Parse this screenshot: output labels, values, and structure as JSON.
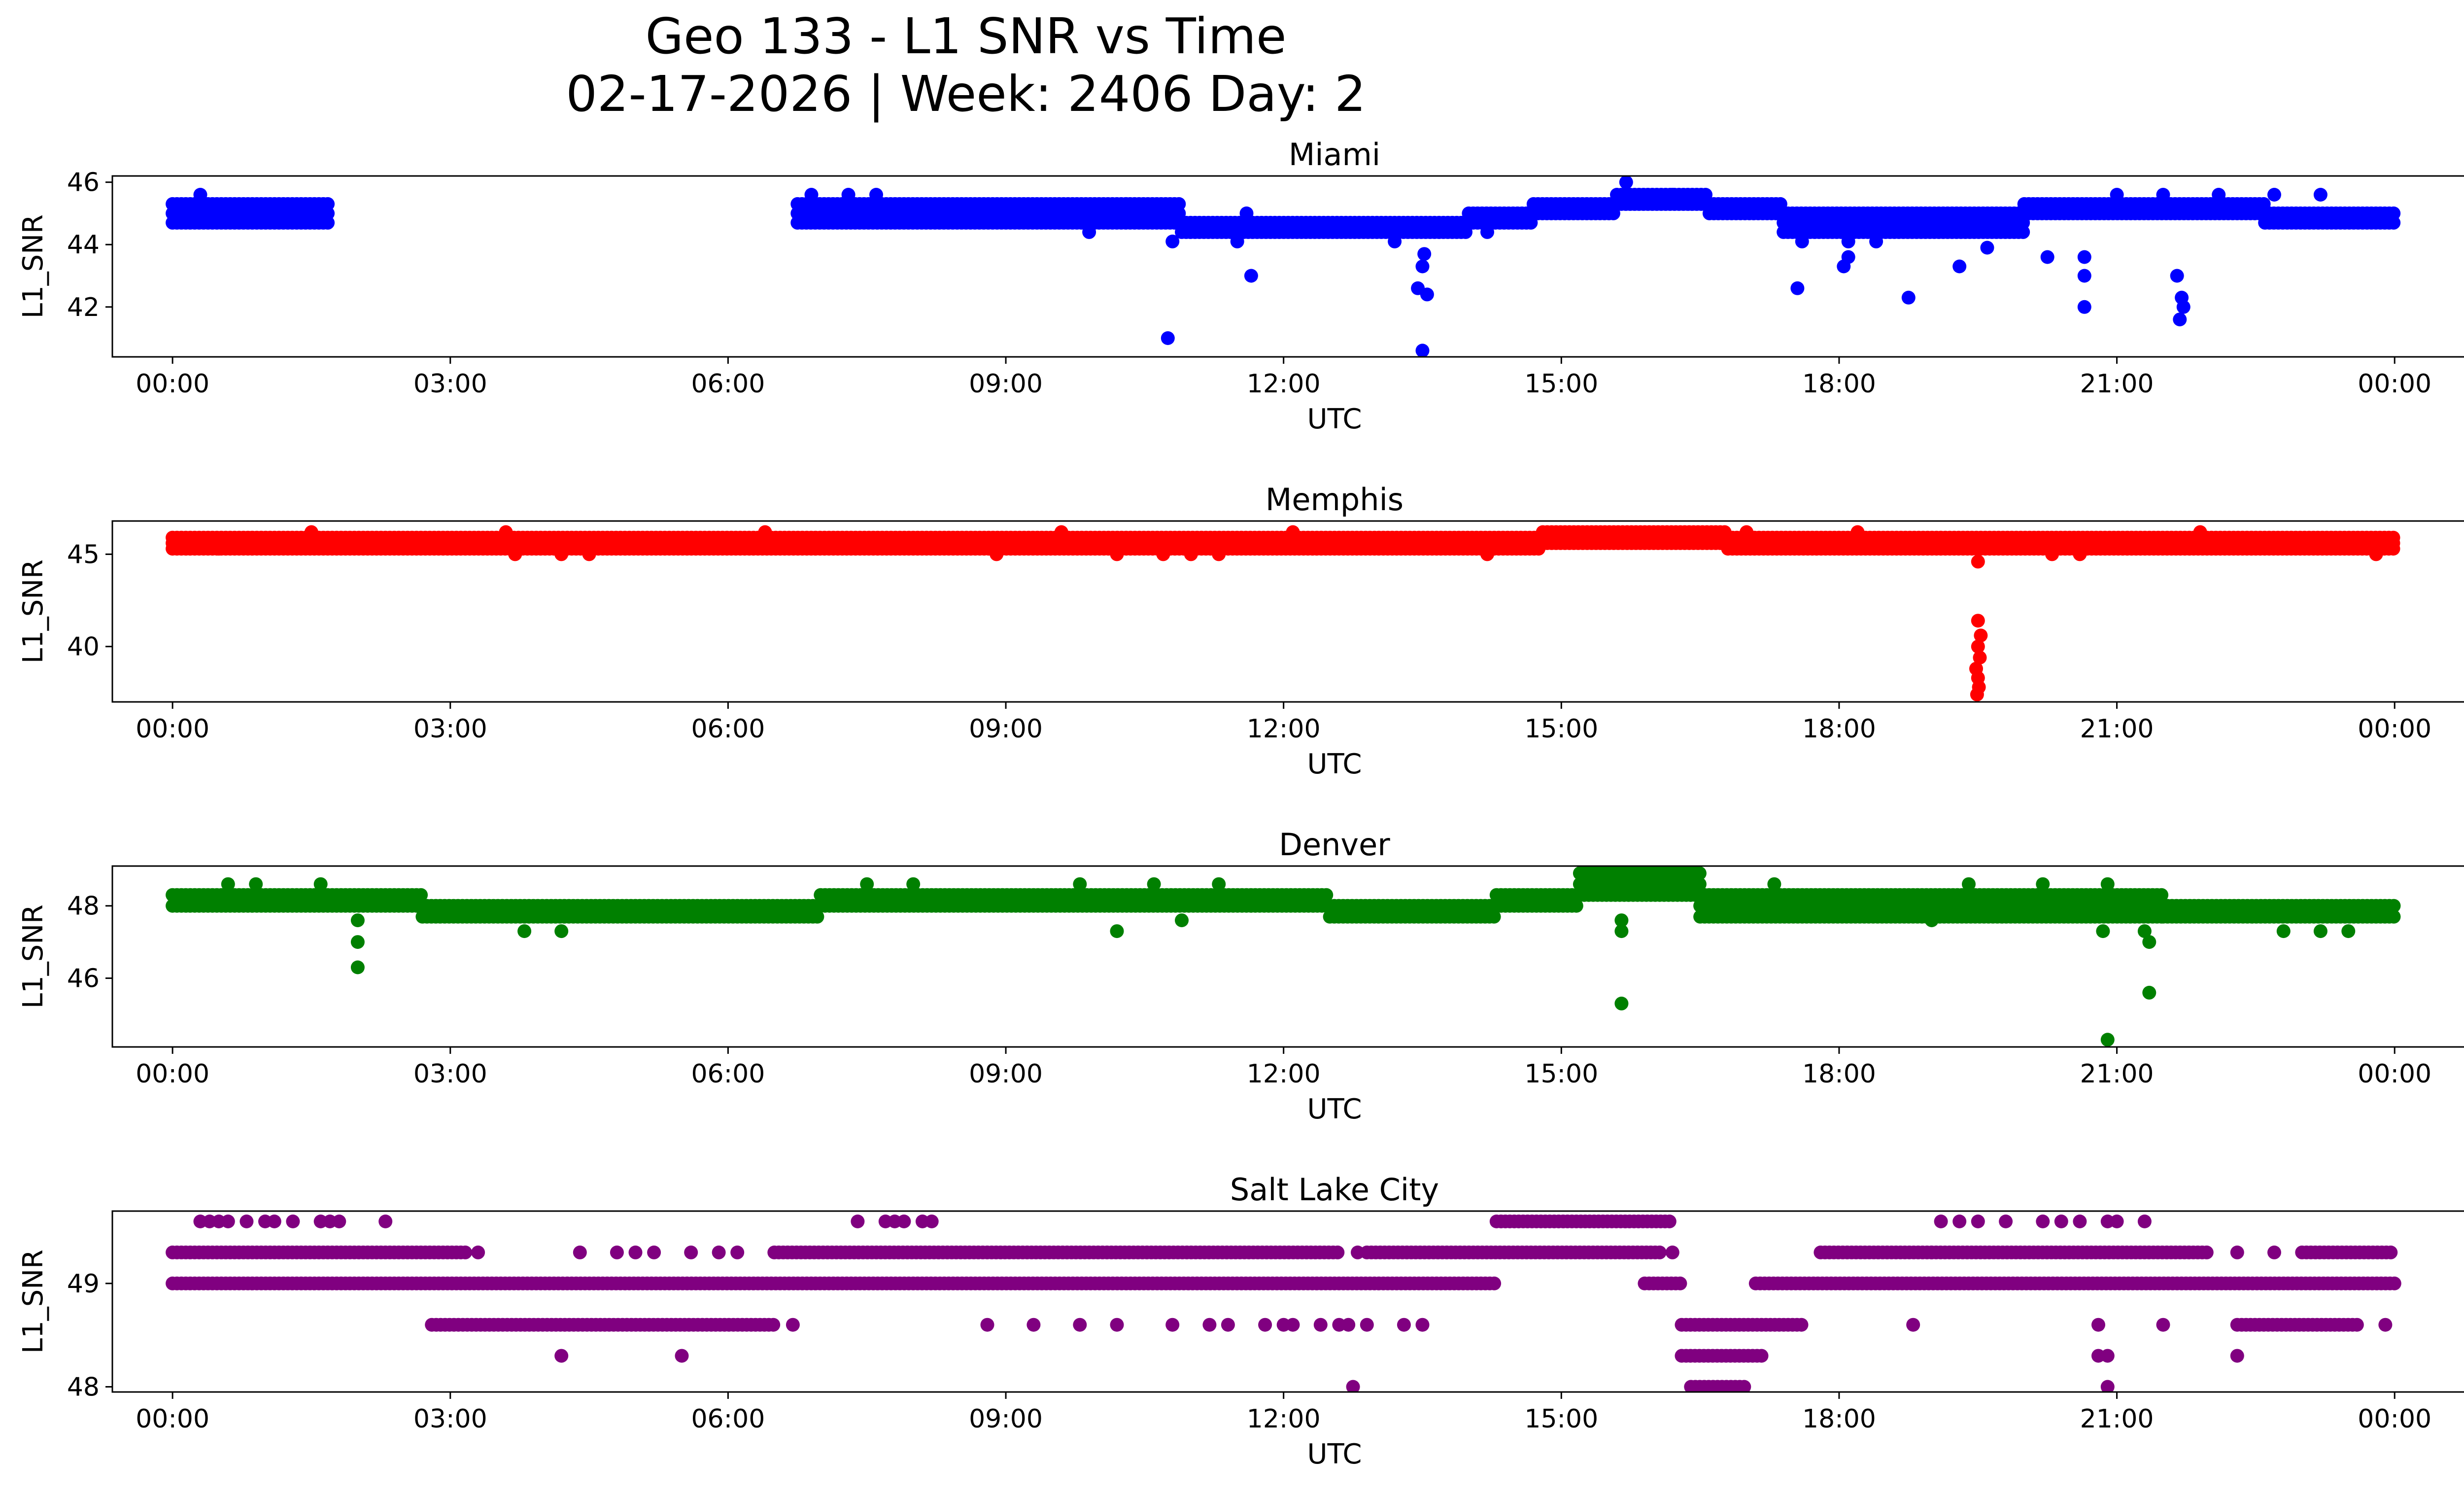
{
  "figure_title": {
    "line1": "Geo 133 - L1 SNR vs Time",
    "line2": "02-17-2026 | Week: 2406 Day: 2"
  },
  "chart_data": [
    {
      "type": "scatter",
      "title": "Miami",
      "color": "#0000ff",
      "xlabel": "UTC",
      "ylabel": "L1_SNR",
      "xlim": [
        -0.65,
        25.75
      ],
      "ylim": [
        40.4,
        46.2
      ],
      "xticks": [
        0,
        3,
        6,
        9,
        12,
        15,
        18,
        21,
        24
      ],
      "xtick_labels": [
        "00:00",
        "03:00",
        "06:00",
        "09:00",
        "12:00",
        "15:00",
        "18:00",
        "21:00",
        "00:00"
      ],
      "yticks": [
        42,
        44,
        46
      ],
      "ytick_labels": [
        "42",
        "44",
        "46"
      ],
      "bands": [
        {
          "x": [
            0.0,
            1.7
          ],
          "levels": [
            45.3,
            45.0,
            44.7
          ],
          "dense": true
        },
        {
          "x": [
            6.75,
            10.9
          ],
          "levels": [
            45.3,
            45.0,
            44.7
          ],
          "dense": true
        },
        {
          "x": [
            10.9,
            14.0
          ],
          "levels": [
            44.7,
            44.4
          ],
          "dense": true
        },
        {
          "x": [
            14.0,
            14.7
          ],
          "levels": [
            45.0,
            44.7
          ],
          "dense": true
        },
        {
          "x": [
            14.7,
            15.6
          ],
          "levels": [
            45.3,
            45.0
          ],
          "dense": true
        },
        {
          "x": [
            15.6,
            16.6
          ],
          "levels": [
            45.6,
            45.3
          ],
          "dense": true
        },
        {
          "x": [
            16.6,
            17.4
          ],
          "levels": [
            45.3,
            45.0
          ],
          "dense": true
        },
        {
          "x": [
            17.4,
            20.0
          ],
          "levels": [
            45.0,
            44.7,
            44.4
          ],
          "dense": true
        },
        {
          "x": [
            20.0,
            22.6
          ],
          "levels": [
            45.3,
            45.0
          ],
          "dense": true
        },
        {
          "x": [
            22.6,
            24.0
          ],
          "levels": [
            45.0,
            44.7
          ],
          "dense": true
        }
      ],
      "points": [
        [
          0.3,
          45.6
        ],
        [
          6.9,
          45.6
        ],
        [
          7.3,
          45.6
        ],
        [
          7.6,
          45.6
        ],
        [
          9.9,
          44.4
        ],
        [
          10.3,
          45.3
        ],
        [
          10.8,
          44.1
        ],
        [
          11.5,
          44.1
        ],
        [
          11.6,
          45.0
        ],
        [
          13.2,
          44.1
        ],
        [
          14.2,
          44.4
        ],
        [
          15.7,
          46.0
        ],
        [
          16.2,
          45.6
        ],
        [
          17.6,
          44.1
        ],
        [
          18.1,
          44.1
        ],
        [
          18.4,
          44.1
        ],
        [
          19.6,
          43.9
        ],
        [
          21.0,
          45.6
        ],
        [
          21.5,
          45.6
        ],
        [
          22.1,
          45.6
        ],
        [
          22.7,
          45.6
        ],
        [
          23.2,
          45.6
        ],
        [
          10.75,
          41.0
        ],
        [
          11.65,
          43.0
        ],
        [
          13.45,
          42.6
        ],
        [
          13.5,
          43.3
        ],
        [
          13.55,
          42.4
        ],
        [
          13.52,
          43.7
        ],
        [
          13.5,
          40.6
        ],
        [
          17.55,
          42.6
        ],
        [
          18.05,
          43.3
        ],
        [
          18.1,
          43.6
        ],
        [
          18.75,
          42.3
        ],
        [
          19.3,
          43.3
        ],
        [
          20.25,
          43.6
        ],
        [
          20.65,
          43.6
        ],
        [
          20.65,
          43.0
        ],
        [
          20.65,
          42.0
        ],
        [
          21.65,
          43.0
        ],
        [
          21.7,
          42.3
        ],
        [
          21.72,
          42.0
        ],
        [
          21.68,
          41.6
        ]
      ]
    },
    {
      "type": "scatter",
      "title": "Memphis",
      "color": "#ff0000",
      "xlabel": "UTC",
      "ylabel": "L1_SNR",
      "xlim": [
        -0.65,
        25.75
      ],
      "ylim": [
        37,
        46.8
      ],
      "xticks": [
        0,
        3,
        6,
        9,
        12,
        15,
        18,
        21,
        24
      ],
      "xtick_labels": [
        "00:00",
        "03:00",
        "06:00",
        "09:00",
        "12:00",
        "15:00",
        "18:00",
        "21:00",
        "00:00"
      ],
      "yticks": [
        40,
        45
      ],
      "ytick_labels": [
        "40",
        "45"
      ],
      "bands": [
        {
          "x": [
            0.0,
            14.8
          ],
          "levels": [
            45.9,
            45.6,
            45.3
          ],
          "dense": true
        },
        {
          "x": [
            14.8,
            16.8
          ],
          "levels": [
            46.2,
            45.9,
            45.6
          ],
          "dense": true
        },
        {
          "x": [
            16.8,
            24.0
          ],
          "levels": [
            45.9,
            45.6,
            45.3
          ],
          "dense": true
        }
      ],
      "points": [
        [
          0.5,
          45.3
        ],
        [
          3.7,
          45.0
        ],
        [
          4.2,
          45.0
        ],
        [
          4.5,
          45.0
        ],
        [
          8.9,
          45.0
        ],
        [
          10.2,
          45.0
        ],
        [
          10.7,
          45.0
        ],
        [
          11.0,
          45.0
        ],
        [
          11.3,
          45.0
        ],
        [
          14.2,
          45.0
        ],
        [
          19.5,
          44.6
        ],
        [
          20.3,
          45.0
        ],
        [
          20.6,
          45.0
        ],
        [
          23.8,
          45.0
        ],
        [
          1.5,
          46.2
        ],
        [
          3.6,
          46.2
        ],
        [
          6.4,
          46.2
        ],
        [
          9.6,
          46.2
        ],
        [
          12.1,
          46.2
        ],
        [
          17.0,
          46.2
        ],
        [
          18.2,
          46.2
        ],
        [
          21.9,
          46.2
        ],
        [
          19.5,
          41.4
        ],
        [
          19.53,
          40.6
        ],
        [
          19.5,
          40.0
        ],
        [
          19.52,
          39.4
        ],
        [
          19.48,
          38.8
        ],
        [
          19.5,
          38.3
        ],
        [
          19.51,
          37.8
        ],
        [
          19.49,
          37.4
        ]
      ]
    },
    {
      "type": "scatter",
      "title": "Denver",
      "color": "#008000",
      "xlabel": "UTC",
      "ylabel": "L1_SNR",
      "xlim": [
        -0.65,
        25.75
      ],
      "ylim": [
        44.1,
        49.1
      ],
      "xticks": [
        0,
        3,
        6,
        9,
        12,
        15,
        18,
        21,
        24
      ],
      "xtick_labels": [
        "00:00",
        "03:00",
        "06:00",
        "09:00",
        "12:00",
        "15:00",
        "18:00",
        "21:00",
        "00:00"
      ],
      "yticks": [
        46,
        48
      ],
      "ytick_labels": [
        "46",
        "48"
      ],
      "bands": [
        {
          "x": [
            0.0,
            2.7
          ],
          "levels": [
            48.3,
            48.0
          ],
          "dense": true
        },
        {
          "x": [
            2.7,
            7.0
          ],
          "levels": [
            48.0,
            47.7
          ],
          "dense": true
        },
        {
          "x": [
            7.0,
            12.5
          ],
          "levels": [
            48.3,
            48.0
          ],
          "dense": true
        },
        {
          "x": [
            12.5,
            14.3
          ],
          "levels": [
            48.0,
            47.7
          ],
          "dense": true
        },
        {
          "x": [
            14.3,
            15.2
          ],
          "levels": [
            48.3,
            48.0
          ],
          "dense": true
        },
        {
          "x": [
            15.2,
            16.5
          ],
          "levels": [
            48.9,
            48.6,
            48.3
          ],
          "dense": true
        },
        {
          "x": [
            16.5,
            21.5
          ],
          "levels": [
            48.3,
            48.0,
            47.7
          ],
          "dense": true
        },
        {
          "x": [
            21.5,
            24.0
          ],
          "levels": [
            48.0,
            47.7
          ],
          "dense": true
        }
      ],
      "points": [
        [
          0.6,
          48.6
        ],
        [
          0.9,
          48.6
        ],
        [
          1.6,
          48.6
        ],
        [
          7.5,
          48.6
        ],
        [
          8.0,
          48.6
        ],
        [
          9.8,
          48.6
        ],
        [
          10.6,
          48.6
        ],
        [
          11.3,
          48.6
        ],
        [
          17.3,
          48.6
        ],
        [
          19.4,
          48.6
        ],
        [
          20.2,
          48.6
        ],
        [
          20.9,
          48.6
        ],
        [
          3.8,
          47.3
        ],
        [
          4.2,
          47.3
        ],
        [
          10.2,
          47.3
        ],
        [
          10.9,
          47.6
        ],
        [
          19.0,
          47.6
        ],
        [
          22.8,
          47.3
        ],
        [
          23.2,
          47.3
        ],
        [
          23.5,
          47.3
        ],
        [
          2.0,
          47.6
        ],
        [
          2.0,
          47.0
        ],
        [
          2.0,
          46.3
        ],
        [
          15.65,
          47.6
        ],
        [
          15.65,
          47.3
        ],
        [
          15.65,
          45.3
        ],
        [
          20.85,
          47.3
        ],
        [
          20.9,
          44.3
        ],
        [
          21.3,
          47.3
        ],
        [
          21.35,
          47.0
        ],
        [
          21.35,
          45.6
        ]
      ]
    },
    {
      "type": "scatter",
      "title": "Salt Lake City",
      "color": "#800080",
      "xlabel": "UTC",
      "ylabel": "L1_SNR",
      "xlim": [
        -0.65,
        25.75
      ],
      "ylim": [
        47.95,
        49.7
      ],
      "xticks": [
        0,
        3,
        6,
        9,
        12,
        15,
        18,
        21,
        24
      ],
      "xtick_labels": [
        "00:00",
        "03:00",
        "06:00",
        "09:00",
        "12:00",
        "15:00",
        "18:00",
        "21:00",
        "00:00"
      ],
      "yticks": [
        48,
        49
      ],
      "ytick_labels": [
        "48",
        "49"
      ],
      "bands": [
        {
          "x": [
            0.0,
            14.3
          ],
          "levels": [
            49.0
          ],
          "dense": true
        },
        {
          "x": [
            15.9,
            16.3
          ],
          "levels": [
            49.0
          ],
          "dense": true
        },
        {
          "x": [
            17.1,
            24.0
          ],
          "levels": [
            49.0
          ],
          "dense": true
        },
        {
          "x": [
            0.0,
            3.2
          ],
          "levels": [
            49.3
          ],
          "dense": true
        },
        {
          "x": [
            6.5,
            12.6
          ],
          "levels": [
            49.3
          ],
          "dense": true
        },
        {
          "x": [
            12.9,
            16.1
          ],
          "levels": [
            49.3
          ],
          "dense": true
        },
        {
          "x": [
            17.8,
            19.0
          ],
          "levels": [
            49.3
          ],
          "dense": true
        },
        {
          "x": [
            19.0,
            22.0
          ],
          "levels": [
            49.3
          ],
          "dense": true
        },
        {
          "x": [
            23.0,
            24.0
          ],
          "levels": [
            49.3
          ],
          "dense": true
        },
        {
          "x": [
            2.8,
            6.5
          ],
          "levels": [
            48.6
          ],
          "dense": true
        },
        {
          "x": [
            16.3,
            17.6
          ],
          "levels": [
            48.6
          ],
          "dense": true
        },
        {
          "x": [
            22.3,
            23.6
          ],
          "levels": [
            48.6
          ],
          "dense": true
        },
        {
          "x": [
            14.3,
            16.2
          ],
          "levels": [
            49.6
          ],
          "dense": true
        },
        {
          "x": [
            16.3,
            17.2
          ],
          "levels": [
            48.3
          ],
          "dense": true
        },
        {
          "x": [
            16.4,
            17.0
          ],
          "levels": [
            48.0
          ],
          "dense": true
        }
      ],
      "points": [
        [
          0.3,
          49.6
        ],
        [
          0.4,
          49.6
        ],
        [
          0.5,
          49.6
        ],
        [
          0.6,
          49.6
        ],
        [
          0.8,
          49.6
        ],
        [
          1.0,
          49.6
        ],
        [
          1.1,
          49.6
        ],
        [
          1.3,
          49.6
        ],
        [
          1.6,
          49.6
        ],
        [
          1.7,
          49.6
        ],
        [
          1.8,
          49.6
        ],
        [
          2.3,
          49.6
        ],
        [
          7.4,
          49.6
        ],
        [
          7.7,
          49.6
        ],
        [
          7.8,
          49.6
        ],
        [
          7.9,
          49.6
        ],
        [
          8.1,
          49.6
        ],
        [
          8.2,
          49.6
        ],
        [
          19.1,
          49.6
        ],
        [
          19.3,
          49.6
        ],
        [
          19.5,
          49.6
        ],
        [
          19.8,
          49.6
        ],
        [
          20.2,
          49.6
        ],
        [
          20.4,
          49.6
        ],
        [
          20.6,
          49.6
        ],
        [
          20.9,
          49.6
        ],
        [
          21.0,
          49.6
        ],
        [
          21.3,
          49.6
        ],
        [
          3.3,
          49.3
        ],
        [
          4.4,
          49.3
        ],
        [
          4.8,
          49.3
        ],
        [
          5.0,
          49.3
        ],
        [
          5.2,
          49.3
        ],
        [
          5.6,
          49.3
        ],
        [
          5.9,
          49.3
        ],
        [
          6.1,
          49.3
        ],
        [
          12.8,
          49.3
        ],
        [
          16.2,
          49.3
        ],
        [
          22.3,
          49.3
        ],
        [
          22.7,
          49.3
        ],
        [
          6.7,
          48.6
        ],
        [
          8.8,
          48.6
        ],
        [
          9.3,
          48.6
        ],
        [
          9.8,
          48.6
        ],
        [
          10.2,
          48.6
        ],
        [
          10.8,
          48.6
        ],
        [
          11.2,
          48.6
        ],
        [
          11.4,
          48.6
        ],
        [
          11.8,
          48.6
        ],
        [
          12.0,
          48.6
        ],
        [
          12.1,
          48.6
        ],
        [
          12.4,
          48.6
        ],
        [
          12.6,
          48.6
        ],
        [
          12.7,
          48.6
        ],
        [
          12.9,
          48.6
        ],
        [
          13.3,
          48.6
        ],
        [
          13.5,
          48.6
        ],
        [
          18.8,
          48.6
        ],
        [
          20.8,
          48.6
        ],
        [
          21.5,
          48.6
        ],
        [
          23.9,
          48.6
        ],
        [
          4.2,
          48.3
        ],
        [
          5.5,
          48.3
        ],
        [
          20.8,
          48.3
        ],
        [
          20.9,
          48.3
        ],
        [
          22.3,
          48.3
        ],
        [
          12.75,
          48.0
        ],
        [
          20.9,
          48.0
        ]
      ]
    }
  ]
}
